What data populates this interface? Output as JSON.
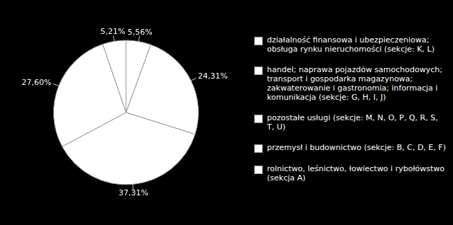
{
  "chart_data": {
    "type": "pie",
    "categories": [
      "działalność finansowa i ubezpieczeniowa; obsługa rynku nieruchomości (sekcje: K, L)",
      "handel; naprawa pojazdów samochodowych; transport i gospodarka magazynowa; zakwaterowanie i gastronomia; informacja i komunikacja (sekcje: G, H, I, J)",
      "pozostałe usługi (sekcje: M, N, O, P, Q, R, S, T, U)",
      "przemysł i budownictwo (sekcje: B, C, D, E, F)",
      "rolnictwo, leśnictwo, łowiectwo i rybołówstwo (sekcja A)"
    ],
    "values": [
      5.56,
      24.31,
      37.31,
      27.6,
      5.21
    ],
    "value_labels": [
      "5,56%",
      "24,31%",
      "37,31%",
      "27,60%",
      "5,21%"
    ],
    "colors": [
      "#ffffff",
      "#ffffff",
      "#ffffff",
      "#ffffff",
      "#ffffff"
    ],
    "legend": "right",
    "data_labels": true
  }
}
